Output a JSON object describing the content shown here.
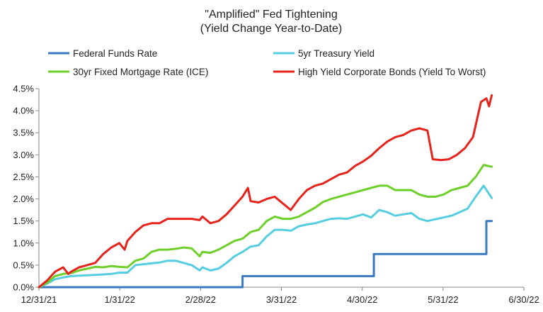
{
  "chart_data": {
    "type": "line",
    "title_lines": [
      "\"Amplified\" Fed Tightening",
      "(Yield Change Year-to-Date)"
    ],
    "xlabel": "",
    "ylabel": "",
    "x_ticks": [
      "12/31/21",
      "1/31/22",
      "2/28/22",
      "3/31/22",
      "4/30/22",
      "5/31/22",
      "6/30/22"
    ],
    "y_ticks": [
      "0.0%",
      "0.5%",
      "1.0%",
      "1.5%",
      "2.0%",
      "2.5%",
      "3.0%",
      "3.5%",
      "4.0%",
      "4.5%"
    ],
    "x_range_days": [
      0,
      181
    ],
    "ylim": [
      0,
      4.5
    ],
    "grid": false,
    "legend_position": "top",
    "series": [
      {
        "name": "Federal Funds Rate",
        "color": "#3a78c2",
        "points": [
          [
            0,
            0
          ],
          [
            76,
            0
          ],
          [
            76,
            0.25
          ],
          [
            125,
            0.25
          ],
          [
            125,
            0.75
          ],
          [
            167,
            0.75
          ],
          [
            167,
            1.5
          ],
          [
            169,
            1.5
          ]
        ]
      },
      {
        "name": "5yr Treasury Yield",
        "color": "#57cde0",
        "points": [
          [
            0,
            0
          ],
          [
            3,
            0.08
          ],
          [
            6,
            0.18
          ],
          [
            9,
            0.22
          ],
          [
            12,
            0.25
          ],
          [
            15,
            0.26
          ],
          [
            18,
            0.27
          ],
          [
            21,
            0.28
          ],
          [
            24,
            0.29
          ],
          [
            27,
            0.3
          ],
          [
            30,
            0.33
          ],
          [
            33,
            0.33
          ],
          [
            36,
            0.5
          ],
          [
            39,
            0.52
          ],
          [
            42,
            0.54
          ],
          [
            45,
            0.56
          ],
          [
            48,
            0.6
          ],
          [
            51,
            0.6
          ],
          [
            54,
            0.55
          ],
          [
            57,
            0.5
          ],
          [
            60,
            0.38
          ],
          [
            61,
            0.45
          ],
          [
            64,
            0.38
          ],
          [
            67,
            0.42
          ],
          [
            70,
            0.55
          ],
          [
            73,
            0.7
          ],
          [
            76,
            0.8
          ],
          [
            79,
            0.92
          ],
          [
            82,
            0.95
          ],
          [
            85,
            1.15
          ],
          [
            88,
            1.3
          ],
          [
            91,
            1.3
          ],
          [
            94,
            1.28
          ],
          [
            97,
            1.38
          ],
          [
            100,
            1.42
          ],
          [
            103,
            1.45
          ],
          [
            106,
            1.5
          ],
          [
            109,
            1.55
          ],
          [
            112,
            1.56
          ],
          [
            115,
            1.55
          ],
          [
            118,
            1.6
          ],
          [
            121,
            1.65
          ],
          [
            124,
            1.58
          ],
          [
            127,
            1.75
          ],
          [
            130,
            1.7
          ],
          [
            133,
            1.62
          ],
          [
            136,
            1.65
          ],
          [
            139,
            1.68
          ],
          [
            142,
            1.55
          ],
          [
            145,
            1.5
          ],
          [
            148,
            1.54
          ],
          [
            151,
            1.58
          ],
          [
            154,
            1.62
          ],
          [
            157,
            1.7
          ],
          [
            160,
            1.78
          ],
          [
            163,
            2.05
          ],
          [
            166,
            2.3
          ],
          [
            169,
            2.02
          ]
        ]
      },
      {
        "name": "30yr Fixed Mortgage Rate (ICE)",
        "color": "#6fcf2a",
        "points": [
          [
            0,
            0
          ],
          [
            3,
            0.1
          ],
          [
            6,
            0.25
          ],
          [
            9,
            0.3
          ],
          [
            12,
            0.32
          ],
          [
            15,
            0.38
          ],
          [
            18,
            0.42
          ],
          [
            21,
            0.46
          ],
          [
            24,
            0.45
          ],
          [
            27,
            0.48
          ],
          [
            30,
            0.46
          ],
          [
            33,
            0.45
          ],
          [
            36,
            0.6
          ],
          [
            39,
            0.65
          ],
          [
            42,
            0.8
          ],
          [
            45,
            0.85
          ],
          [
            48,
            0.85
          ],
          [
            51,
            0.87
          ],
          [
            54,
            0.9
          ],
          [
            57,
            0.88
          ],
          [
            60,
            0.7
          ],
          [
            61,
            0.8
          ],
          [
            64,
            0.78
          ],
          [
            67,
            0.85
          ],
          [
            70,
            0.95
          ],
          [
            73,
            1.05
          ],
          [
            76,
            1.1
          ],
          [
            79,
            1.25
          ],
          [
            82,
            1.3
          ],
          [
            85,
            1.5
          ],
          [
            88,
            1.6
          ],
          [
            91,
            1.55
          ],
          [
            94,
            1.55
          ],
          [
            97,
            1.6
          ],
          [
            100,
            1.7
          ],
          [
            103,
            1.8
          ],
          [
            106,
            1.93
          ],
          [
            109,
            2.0
          ],
          [
            112,
            2.05
          ],
          [
            115,
            2.1
          ],
          [
            118,
            2.15
          ],
          [
            121,
            2.2
          ],
          [
            124,
            2.25
          ],
          [
            127,
            2.3
          ],
          [
            130,
            2.3
          ],
          [
            133,
            2.2
          ],
          [
            136,
            2.2
          ],
          [
            139,
            2.2
          ],
          [
            142,
            2.1
          ],
          [
            145,
            2.05
          ],
          [
            148,
            2.05
          ],
          [
            151,
            2.1
          ],
          [
            154,
            2.2
          ],
          [
            157,
            2.25
          ],
          [
            160,
            2.3
          ],
          [
            163,
            2.5
          ],
          [
            166,
            2.77
          ],
          [
            169,
            2.73
          ]
        ]
      },
      {
        "name": "High Yield Corporate Bonds (Yield To Worst)",
        "color": "#e5231b",
        "points": [
          [
            0,
            0
          ],
          [
            3,
            0.15
          ],
          [
            6,
            0.35
          ],
          [
            9,
            0.45
          ],
          [
            11,
            0.3
          ],
          [
            12,
            0.35
          ],
          [
            15,
            0.45
          ],
          [
            18,
            0.5
          ],
          [
            21,
            0.55
          ],
          [
            24,
            0.75
          ],
          [
            27,
            0.9
          ],
          [
            30,
            1.0
          ],
          [
            32,
            0.85
          ],
          [
            33,
            1.05
          ],
          [
            36,
            1.25
          ],
          [
            39,
            1.4
          ],
          [
            42,
            1.45
          ],
          [
            45,
            1.45
          ],
          [
            48,
            1.55
          ],
          [
            51,
            1.55
          ],
          [
            54,
            1.55
          ],
          [
            57,
            1.55
          ],
          [
            60,
            1.52
          ],
          [
            61,
            1.6
          ],
          [
            64,
            1.45
          ],
          [
            67,
            1.5
          ],
          [
            70,
            1.65
          ],
          [
            73,
            1.85
          ],
          [
            76,
            2.05
          ],
          [
            78,
            2.25
          ],
          [
            79,
            1.95
          ],
          [
            82,
            1.92
          ],
          [
            85,
            2.0
          ],
          [
            88,
            2.05
          ],
          [
            91,
            1.9
          ],
          [
            94,
            1.75
          ],
          [
            97,
            2.0
          ],
          [
            100,
            2.2
          ],
          [
            103,
            2.3
          ],
          [
            106,
            2.35
          ],
          [
            109,
            2.45
          ],
          [
            112,
            2.55
          ],
          [
            115,
            2.6
          ],
          [
            118,
            2.75
          ],
          [
            121,
            2.85
          ],
          [
            124,
            2.98
          ],
          [
            127,
            3.15
          ],
          [
            130,
            3.3
          ],
          [
            133,
            3.4
          ],
          [
            136,
            3.45
          ],
          [
            139,
            3.55
          ],
          [
            142,
            3.6
          ],
          [
            145,
            3.55
          ],
          [
            147,
            2.9
          ],
          [
            150,
            2.88
          ],
          [
            153,
            2.9
          ],
          [
            156,
            3.0
          ],
          [
            159,
            3.15
          ],
          [
            162,
            3.4
          ],
          [
            165,
            4.2
          ],
          [
            167,
            4.28
          ],
          [
            168,
            4.1
          ],
          [
            169,
            4.35
          ]
        ]
      }
    ]
  }
}
